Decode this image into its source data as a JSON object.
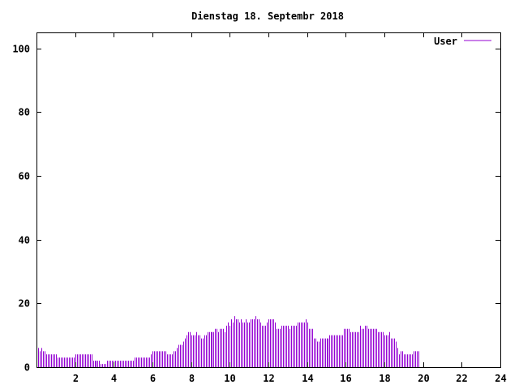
{
  "chart_data": {
    "type": "bar",
    "title": "Dienstag 18. Septembr 2018",
    "xlabel": "",
    "ylabel": "",
    "xlim": [
      0,
      24
    ],
    "ylim": [
      0,
      105
    ],
    "x_ticks": [
      2,
      4,
      6,
      8,
      10,
      12,
      14,
      16,
      18,
      20,
      22,
      24
    ],
    "y_ticks": [
      0,
      20,
      40,
      60,
      80,
      100
    ],
    "grid": false,
    "legend_position": "top-right",
    "series": [
      {
        "name": "User",
        "color": "#9400d3",
        "interval_minutes": 5,
        "values": [
          6,
          6,
          5,
          6,
          5,
          5,
          4,
          4,
          4,
          4,
          4,
          4,
          4,
          3,
          3,
          3,
          3,
          3,
          3,
          3,
          3,
          3,
          3,
          3,
          4,
          4,
          4,
          4,
          4,
          4,
          4,
          4,
          4,
          4,
          4,
          2,
          2,
          2,
          2,
          2,
          1,
          1,
          1,
          1,
          2,
          2,
          2,
          2,
          2,
          2,
          2,
          2,
          2,
          2,
          2,
          2,
          2,
          2,
          2,
          2,
          2,
          3,
          3,
          3,
          3,
          3,
          3,
          3,
          3,
          3,
          3,
          4,
          5,
          5,
          5,
          5,
          5,
          5,
          5,
          5,
          5,
          4,
          4,
          4,
          4,
          5,
          5,
          6,
          7,
          7,
          7,
          8,
          9,
          10,
          11,
          11,
          10,
          10,
          10,
          11,
          10,
          10,
          9,
          9,
          10,
          10,
          11,
          11,
          11,
          11,
          11,
          12,
          12,
          11,
          12,
          12,
          12,
          11,
          13,
          14,
          13,
          15,
          14,
          16,
          15,
          15,
          14,
          15,
          14,
          14,
          15,
          14,
          14,
          15,
          15,
          15,
          16,
          15,
          15,
          14,
          13,
          13,
          13,
          14,
          15,
          15,
          15,
          15,
          14,
          12,
          12,
          12,
          13,
          13,
          13,
          13,
          13,
          12,
          13,
          13,
          13,
          13,
          14,
          14,
          14,
          14,
          14,
          15,
          14,
          12,
          12,
          12,
          9,
          9,
          8,
          8,
          9,
          9,
          9,
          9,
          9,
          9,
          10,
          10,
          10,
          10,
          10,
          10,
          10,
          10,
          10,
          12,
          12,
          12,
          12,
          11,
          11,
          11,
          11,
          11,
          11,
          13,
          12,
          12,
          13,
          13,
          12,
          12,
          12,
          12,
          12,
          12,
          11,
          11,
          11,
          11,
          10,
          10,
          10,
          11,
          9,
          9,
          9,
          8,
          6,
          4,
          5,
          5,
          4,
          4,
          4,
          4,
          4,
          4,
          5,
          5,
          5,
          5
        ]
      }
    ]
  }
}
